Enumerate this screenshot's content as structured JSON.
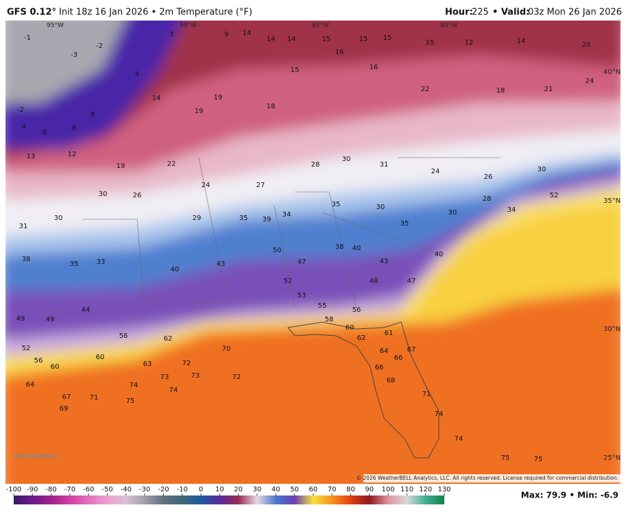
{
  "header": {
    "model": "GFS 0.12°",
    "info": "Init 18z 16 Jan 2026 • 2m Temperature (°F)",
    "hour_label": "Hour:",
    "hour": 225,
    "valid_label": "• Valid:",
    "valid": "03z Mon 26 Jan 2026"
  },
  "map": {
    "lat_labels": [
      "40°N",
      "35°N",
      "30°N",
      "25°N"
    ],
    "lon_labels": [
      "95°W",
      "90°W",
      "85°W",
      "80°W"
    ],
    "stations": [
      3,
      9,
      14,
      14,
      14,
      15,
      15,
      15,
      15,
      12,
      14,
      20,
      -1,
      -2,
      -3,
      -2,
      4,
      8,
      6,
      8,
      4,
      14,
      19,
      19,
      18,
      15,
      16,
      16,
      22,
      18,
      21,
      24,
      13,
      12,
      19,
      22,
      24,
      27,
      28,
      30,
      31,
      24,
      26,
      30,
      52,
      31,
      30,
      30,
      26,
      29,
      35,
      39,
      34,
      35,
      30,
      30,
      28,
      34,
      38,
      35,
      33,
      40,
      43,
      50,
      52,
      47,
      38,
      40,
      43,
      48,
      47,
      40,
      35,
      49,
      49,
      44,
      56,
      62,
      70,
      72,
      63,
      73,
      73,
      74,
      74,
      75,
      71,
      67,
      69,
      64,
      60,
      60,
      56,
      52,
      72,
      53,
      55,
      56,
      58,
      60,
      62,
      61,
      64,
      66,
      66,
      68,
      67,
      71,
      74,
      74,
      75,
      75
    ],
    "logo": "WEATHERBELL",
    "copyright": "© 2026 WeatherBELL Analytics, LLC. All rights reserved. License required for commercial distribution."
  },
  "colorbar": {
    "ticks": [
      -100,
      -90,
      -80,
      -70,
      -60,
      -50,
      -40,
      -30,
      -20,
      -10,
      0,
      10,
      20,
      30,
      40,
      50,
      60,
      70,
      80,
      90,
      100,
      110,
      120,
      130
    ],
    "colors": [
      "#3a1a6a",
      "#6a1a8a",
      "#a0208a",
      "#d040a0",
      "#e070c0",
      "#f0a0d0",
      "#d8c0d8",
      "#a0a0a8",
      "#607080",
      "#406878",
      "#1a5a9a",
      "#5a2aa0",
      "#9a2a50",
      "#e8d8e0",
      "#4a7ad0",
      "#6a40b0",
      "#f8e040",
      "#f89020",
      "#e04010",
      "#901820",
      "#e090a0",
      "#d8d8d8",
      "#40b090",
      "#108050"
    ]
  },
  "footer": {
    "stats": "Max: 79.9 • Min: -6.9"
  }
}
